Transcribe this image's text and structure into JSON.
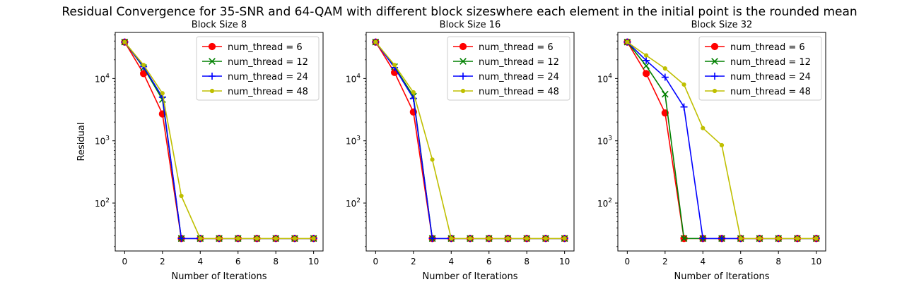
{
  "figure": {
    "suptitle": "Residual Convergence for 35-SNR and 64-QAM with different block sizeswhere each element in the initial point is the rounded mean"
  },
  "chart_data": [
    {
      "type": "line",
      "title": "Block Size 8",
      "xlabel": "Number of Iterations",
      "ylabel": "Residual",
      "yscale": "log",
      "xlim": [
        -0.5,
        10.5
      ],
      "ylim": [
        17,
        55000
      ],
      "xticks": [
        0,
        2,
        4,
        6,
        8,
        10
      ],
      "yticks": [
        100,
        1000,
        10000
      ],
      "legend_position": "upper right",
      "x": [
        0,
        1,
        2,
        3,
        4,
        5,
        6,
        7,
        8,
        9,
        10
      ],
      "series": [
        {
          "name": "num_thread = 6",
          "color": "#ff0000",
          "marker": "circle",
          "values": [
            38500,
            12000,
            2700,
            27,
            27,
            27,
            27,
            27,
            27,
            27,
            27
          ]
        },
        {
          "name": "num_thread = 12",
          "color": "#008000",
          "marker": "x",
          "values": [
            38500,
            15000,
            4600,
            27,
            27,
            27,
            27,
            27,
            27,
            27,
            27
          ]
        },
        {
          "name": "num_thread = 24",
          "color": "#0000ff",
          "marker": "plus",
          "values": [
            38500,
            15500,
            5000,
            27,
            27,
            27,
            27,
            27,
            27,
            27,
            27
          ]
        },
        {
          "name": "num_thread = 48",
          "color": "#bfbf00",
          "marker": "point",
          "values": [
            38500,
            16500,
            5800,
            130,
            27,
            27,
            27,
            27,
            27,
            27,
            27
          ]
        }
      ]
    },
    {
      "type": "line",
      "title": "Block Size 16",
      "xlabel": "Number of Iterations",
      "ylabel": "",
      "yscale": "log",
      "xlim": [
        -0.5,
        10.5
      ],
      "ylim": [
        17,
        55000
      ],
      "xticks": [
        0,
        2,
        4,
        6,
        8,
        10
      ],
      "yticks": [
        100,
        1000,
        10000
      ],
      "legend_position": "upper right",
      "x": [
        0,
        1,
        2,
        3,
        4,
        5,
        6,
        7,
        8,
        9,
        10
      ],
      "series": [
        {
          "name": "num_thread = 6",
          "color": "#ff0000",
          "marker": "circle",
          "values": [
            38500,
            12500,
            2900,
            27,
            27,
            27,
            27,
            27,
            27,
            27,
            27
          ]
        },
        {
          "name": "num_thread = 12",
          "color": "#008000",
          "marker": "x",
          "values": [
            38500,
            15500,
            5200,
            27,
            27,
            27,
            27,
            27,
            27,
            27,
            27
          ]
        },
        {
          "name": "num_thread = 24",
          "color": "#0000ff",
          "marker": "plus",
          "values": [
            38500,
            15000,
            4800,
            27,
            27,
            27,
            27,
            27,
            27,
            27,
            27
          ]
        },
        {
          "name": "num_thread = 48",
          "color": "#bfbf00",
          "marker": "point",
          "values": [
            38500,
            16500,
            6000,
            500,
            27,
            27,
            27,
            27,
            27,
            27,
            27
          ]
        }
      ]
    },
    {
      "type": "line",
      "title": "Block Size 32",
      "xlabel": "Number of Iterations",
      "ylabel": "",
      "yscale": "log",
      "xlim": [
        -0.5,
        10.5
      ],
      "ylim": [
        17,
        55000
      ],
      "xticks": [
        0,
        2,
        4,
        6,
        8,
        10
      ],
      "yticks": [
        100,
        1000,
        10000
      ],
      "legend_position": "upper right",
      "x": [
        0,
        1,
        2,
        3,
        4,
        5,
        6,
        7,
        8,
        9,
        10
      ],
      "series": [
        {
          "name": "num_thread = 6",
          "color": "#ff0000",
          "marker": "circle",
          "values": [
            38500,
            12000,
            2800,
            27,
            27,
            27,
            27,
            27,
            27,
            27,
            27
          ]
        },
        {
          "name": "num_thread = 12",
          "color": "#008000",
          "marker": "x",
          "values": [
            38500,
            16000,
            5600,
            27,
            27,
            27,
            27,
            27,
            27,
            27,
            27
          ]
        },
        {
          "name": "num_thread = 24",
          "color": "#0000ff",
          "marker": "plus",
          "values": [
            38500,
            19500,
            10500,
            3500,
            27,
            27,
            27,
            27,
            27,
            27,
            27
          ]
        },
        {
          "name": "num_thread = 48",
          "color": "#bfbf00",
          "marker": "point",
          "values": [
            38500,
            23500,
            14500,
            8000,
            1600,
            850,
            27,
            27,
            27,
            27,
            27
          ]
        }
      ]
    }
  ]
}
